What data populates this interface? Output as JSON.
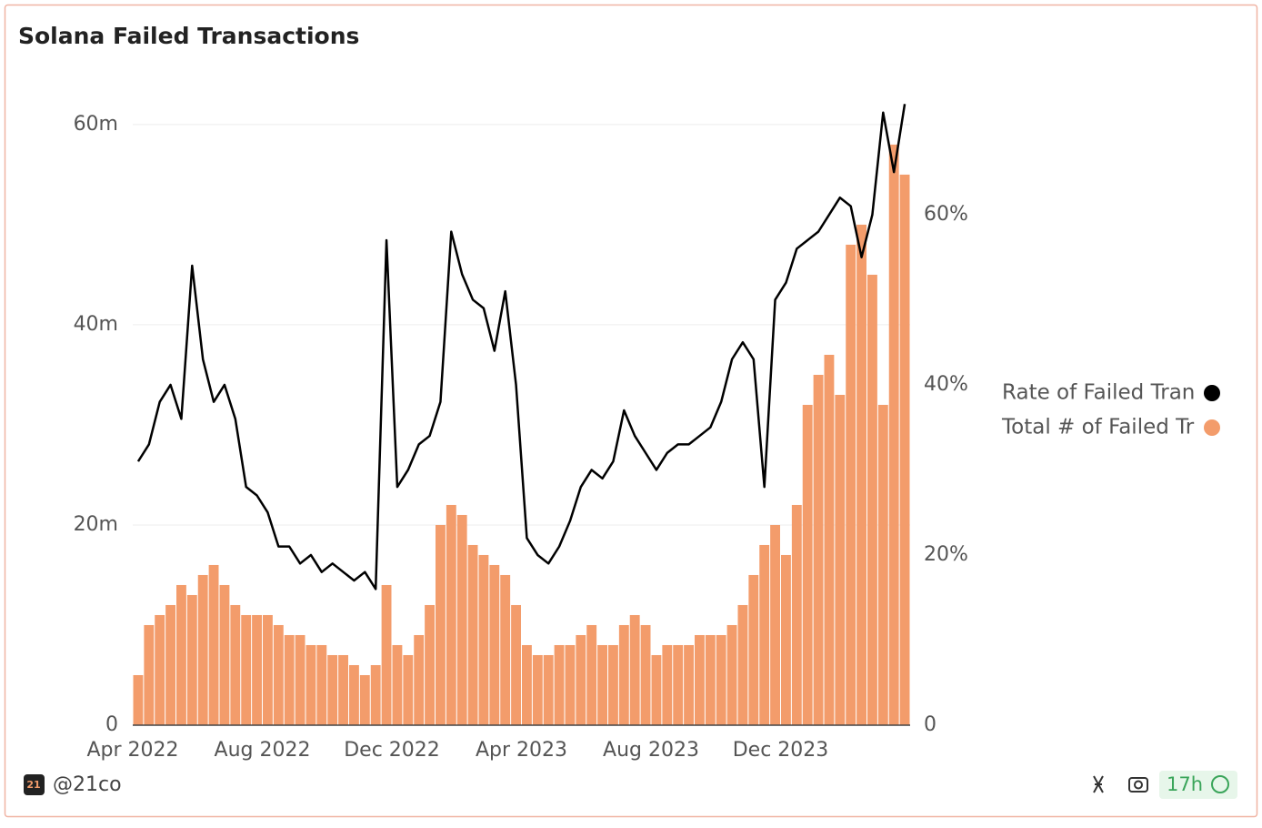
{
  "chart_data": {
    "type": "bar_line",
    "title": "Solana Failed Transactions",
    "categories": [
      "Apr 2022",
      null,
      null,
      null,
      null,
      null,
      null,
      null,
      null,
      null,
      null,
      null,
      "Aug 2022",
      null,
      null,
      null,
      null,
      null,
      null,
      null,
      null,
      null,
      null,
      null,
      "Dec 2022",
      null,
      null,
      null,
      null,
      null,
      null,
      null,
      null,
      null,
      null,
      null,
      "Apr 2023",
      null,
      null,
      null,
      null,
      null,
      null,
      null,
      null,
      null,
      null,
      null,
      "Aug 2023",
      null,
      null,
      null,
      null,
      null,
      null,
      null,
      null,
      null,
      null,
      null,
      "Dec 2023",
      null,
      null,
      null,
      null,
      null,
      null,
      null,
      null,
      null,
      null,
      null
    ],
    "series": [
      {
        "name": "Rate of Failed Transactions",
        "color": "#000000",
        "axis": "y2",
        "values": [
          31,
          33,
          38,
          40,
          36,
          54,
          43,
          38,
          40,
          36,
          28,
          27,
          25,
          21,
          21,
          19,
          20,
          18,
          19,
          18,
          17,
          18,
          16,
          57,
          28,
          30,
          33,
          34,
          38,
          58,
          53,
          50,
          49,
          44,
          51,
          40,
          22,
          20,
          19,
          21,
          24,
          28,
          30,
          29,
          31,
          37,
          34,
          32,
          30,
          32,
          33,
          33,
          34,
          35,
          38,
          43,
          45,
          43,
          28,
          50,
          52,
          56,
          57,
          58,
          60,
          62,
          61,
          55,
          60,
          72,
          65,
          73
        ]
      },
      {
        "name": "Total # of Failed Transactions",
        "color": "#f39c6b",
        "axis": "y",
        "values": [
          5,
          10,
          11,
          12,
          14,
          13,
          15,
          16,
          14,
          12,
          11,
          11,
          11,
          10,
          9,
          9,
          8,
          8,
          7,
          7,
          6,
          5,
          6,
          14,
          8,
          7,
          9,
          12,
          20,
          22,
          21,
          18,
          17,
          16,
          15,
          12,
          8,
          7,
          7,
          8,
          8,
          9,
          10,
          8,
          8,
          10,
          11,
          10,
          7,
          8,
          8,
          8,
          9,
          9,
          9,
          10,
          12,
          15,
          18,
          20,
          17,
          22,
          32,
          35,
          37,
          33,
          48,
          50,
          45,
          32,
          58,
          55
        ]
      }
    ],
    "ylim": [
      0,
      62.9
    ],
    "yticks": [
      0,
      {
        "value": 20,
        "label": "20m"
      },
      {
        "value": 40,
        "label": "40m"
      },
      {
        "value": 60,
        "label": "60m"
      }
    ],
    "y2lim": [
      0,
      74
    ],
    "y2ticks": [
      0,
      {
        "value": 20,
        "label": "20%"
      },
      {
        "value": 40,
        "label": "40%"
      },
      {
        "value": 60,
        "label": "60%"
      }
    ],
    "grid": true,
    "legend": "right"
  },
  "footer": {
    "author": "@21co",
    "age": "17h"
  }
}
